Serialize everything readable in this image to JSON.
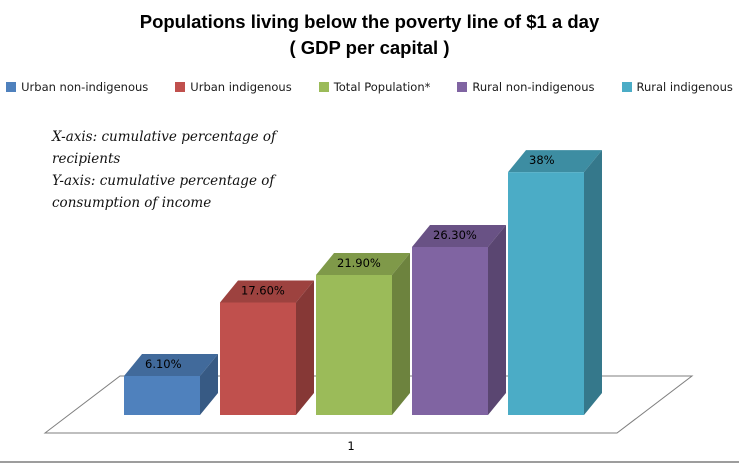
{
  "title": {
    "line1": "Populations living below the poverty line of $1 a day",
    "line2": "( GDP per capital )"
  },
  "annotation": {
    "lines": [
      "X-axis: cumulative percentage of",
      "recipients",
      "Y-axis: cumulative percentage of",
      "consumption of income"
    ]
  },
  "chart_data": {
    "type": "bar",
    "projection": "3d",
    "title": "Populations living below the poverty line of $1 a day ( GDP per capital )",
    "categories": [
      "1"
    ],
    "series": [
      {
        "name": "Urban non-indigenous",
        "value": 6.1,
        "label": "6.10%",
        "color": "#4f81bd"
      },
      {
        "name": "Urban indigenous",
        "value": 17.6,
        "label": "17.60%",
        "color": "#c0504d"
      },
      {
        "name": "Total Population*",
        "value": 21.9,
        "label": "21.90%",
        "color": "#9bbb59"
      },
      {
        "name": "Rural non-indigenous",
        "value": 26.3,
        "label": "26.30%",
        "color": "#8064a2"
      },
      {
        "name": "Rural indigenous",
        "value": 38,
        "label": "38%",
        "color": "#4bacc6"
      }
    ],
    "ylim": [
      0,
      40
    ],
    "grid": false,
    "legend_position": "top",
    "annotations": [
      "X-axis: cumulative percentage of recipients",
      "Y-axis: cumulative percentage of consumption of income"
    ],
    "colors": {
      "floor_stroke": "#7f7f7f",
      "bottom_rule": "#9d9d9d"
    }
  }
}
